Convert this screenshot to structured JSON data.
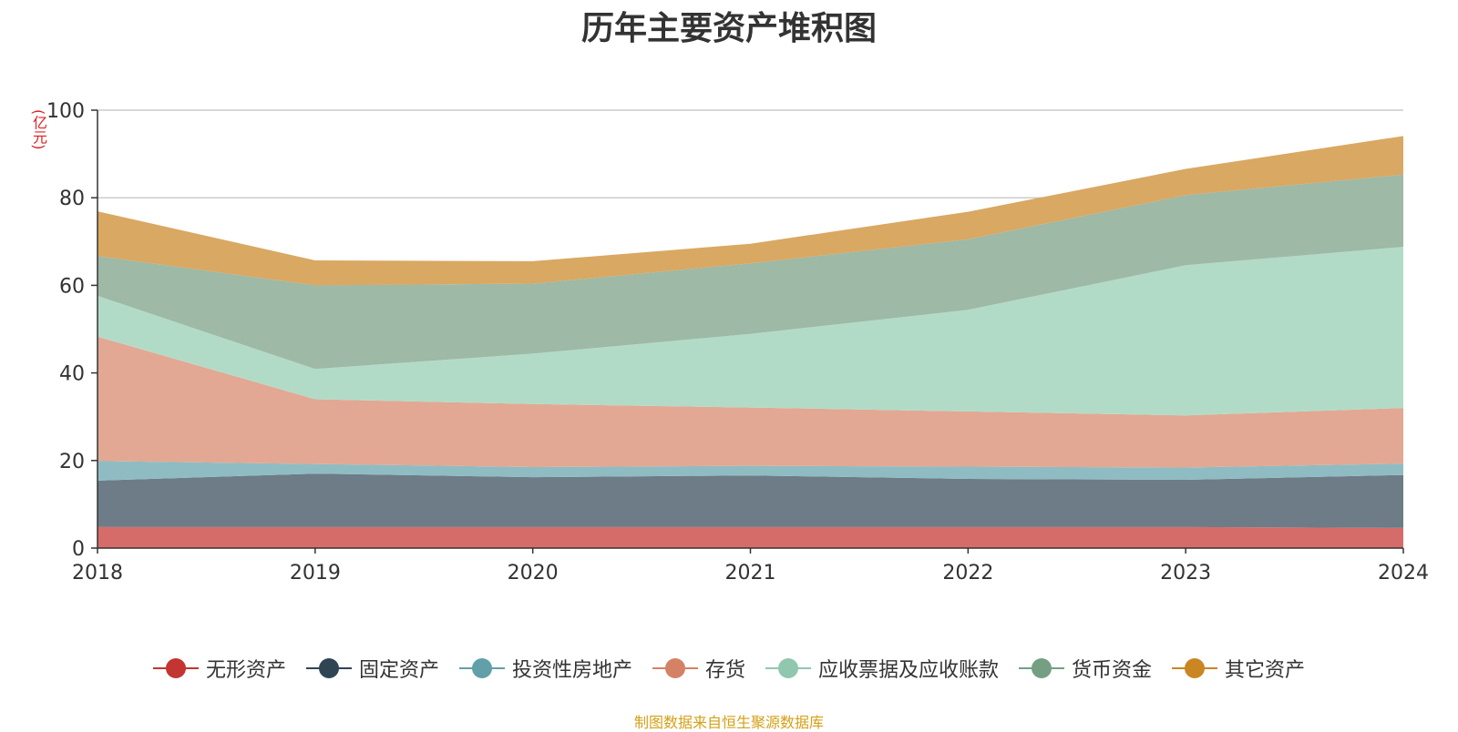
{
  "chart_data": {
    "type": "area",
    "title": "历年主要资产堆积图",
    "unit_label": "(亿元)",
    "categories": [
      "2018",
      "2019",
      "2020",
      "2021",
      "2022",
      "2023",
      "2024"
    ],
    "ylim": [
      0,
      100
    ],
    "yticks": [
      0,
      20,
      40,
      60,
      80,
      100
    ],
    "grid": true,
    "legend_position": "bottom",
    "series": [
      {
        "name": "无形资产",
        "color": "#c23531",
        "fill": "#d66c6a",
        "values": [
          4.8,
          4.8,
          4.8,
          4.8,
          4.8,
          4.8,
          4.6
        ]
      },
      {
        "name": "固定资产",
        "color": "#2f4554",
        "fill": "#6d7c87",
        "values": [
          10.6,
          12.2,
          11.4,
          11.8,
          11.0,
          10.8,
          12.1
        ]
      },
      {
        "name": "投资性房地产",
        "color": "#61a0a8",
        "fill": "#8fbcc2",
        "values": [
          4.5,
          2.2,
          2.3,
          2.2,
          2.8,
          2.8,
          2.6
        ]
      },
      {
        "name": "存货",
        "color": "#d48265",
        "fill": "#e2a893",
        "values": [
          28.4,
          14.8,
          14.4,
          13.3,
          12.6,
          11.9,
          12.7
        ]
      },
      {
        "name": "应收票据及应收账款",
        "color": "#91c7ae",
        "fill": "#b2dbc7",
        "values": [
          9.3,
          6.9,
          11.5,
          16.8,
          23.2,
          34.3,
          36.8
        ]
      },
      {
        "name": "货币资金",
        "color": "#749f83",
        "fill": "#9eb9a6",
        "values": [
          9.1,
          19.1,
          16.0,
          16.1,
          16.1,
          16.0,
          16.5
        ]
      },
      {
        "name": "其它资产",
        "color": "#ca8622",
        "fill": "#d9a862",
        "values": [
          10.2,
          5.7,
          5.1,
          4.5,
          6.3,
          6.0,
          8.8
        ]
      }
    ]
  },
  "source_note": "制图数据来自恒生聚源数据库"
}
